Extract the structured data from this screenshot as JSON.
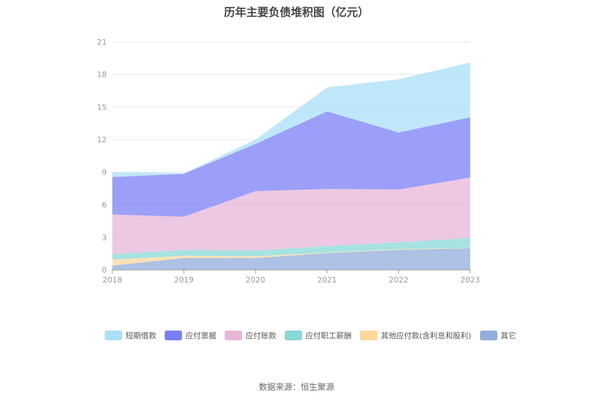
{
  "title": "历年主要负债堆积图（亿元）",
  "source": "数据来源：恒生聚源",
  "chart_data": {
    "type": "area",
    "stacked": true,
    "title": "历年主要负债堆积图（亿元）",
    "xlabel": "",
    "ylabel": "",
    "categories": [
      "2018",
      "2019",
      "2020",
      "2021",
      "2022",
      "2023"
    ],
    "y_ticks": [
      "0",
      "3",
      "6",
      "9",
      "12",
      "15",
      "18",
      "21"
    ],
    "ylim": [
      0,
      21
    ],
    "grid": true,
    "legend_position": "bottom",
    "series": [
      {
        "name": "其它",
        "color": "#92aedb",
        "values": [
          0.4,
          1.1,
          1.1,
          1.55,
          1.85,
          2.0
        ]
      },
      {
        "name": "其他应付款(含利息和股利)",
        "color": "#fcd89a",
        "values": [
          0.55,
          0.2,
          0.15,
          0.05,
          0.05,
          0.05
        ]
      },
      {
        "name": "应付职工薪酬",
        "color": "#88d8d8",
        "values": [
          0.5,
          0.55,
          0.55,
          0.6,
          0.65,
          0.9
        ]
      },
      {
        "name": "应付账款",
        "color": "#e8b6d8",
        "values": [
          3.65,
          3.05,
          5.45,
          5.25,
          4.85,
          5.55
        ]
      },
      {
        "name": "应付票据",
        "color": "#7b7ff5",
        "values": [
          3.45,
          3.95,
          4.35,
          7.15,
          5.25,
          5.55
        ]
      },
      {
        "name": "短期借款",
        "color": "#a9dff8",
        "values": [
          0.45,
          0.05,
          0.4,
          2.2,
          4.9,
          5.05
        ]
      }
    ],
    "legend_order": [
      "短期借款",
      "应付票据",
      "应付账款",
      "应付职工薪酬",
      "其他应付款(含利息和股利)",
      "其它"
    ]
  }
}
